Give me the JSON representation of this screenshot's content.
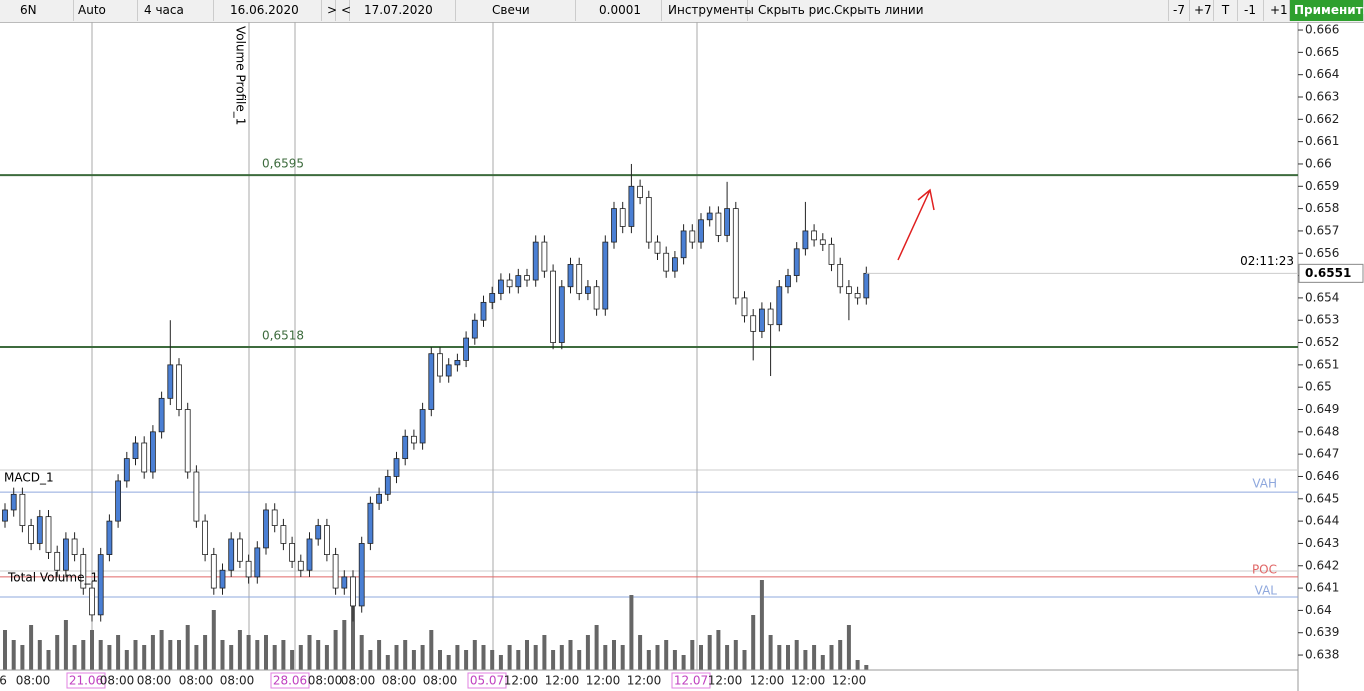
{
  "toolbar": {
    "symbol": "6N",
    "scale": "Auto",
    "timeframe": "4 часа",
    "date_from": "16.06.2020",
    "next": ">",
    "prev": "<",
    "date_to": "17.07.2020",
    "chart_style": "Свечи",
    "tick_size": "0.0001",
    "tools": "Инструменты",
    "hide_drawings": "Скрыть рис.",
    "hide_lines": "Скрыть линии",
    "minus7": "-7",
    "plus7": "+7",
    "t": "T",
    "minus1": "-1",
    "plus1": "+1",
    "apply": "Применить"
  },
  "chart_data": {
    "type": "candlestick",
    "ylim": [
      0.63733,
      0.66636
    ],
    "yticks": [
      0.638,
      0.639,
      0.64,
      0.641,
      0.642,
      0.643,
      0.644,
      0.645,
      0.646,
      0.647,
      0.648,
      0.649,
      0.65,
      0.651,
      0.652,
      0.653,
      0.654,
      0.655,
      0.656,
      0.657,
      0.658,
      0.659,
      0.66,
      0.661,
      0.662,
      0.663,
      0.664,
      0.665,
      0.666
    ],
    "open": [
      0.644,
      0.6445,
      0.6452,
      0.6438,
      0.643,
      0.6442,
      0.6426,
      0.6418,
      0.6432,
      0.6425,
      0.641,
      0.6398,
      0.6425,
      0.644,
      0.6458,
      0.6468,
      0.6475,
      0.6462,
      0.648,
      0.6495,
      0.651,
      0.649,
      0.6462,
      0.644,
      0.6425,
      0.641,
      0.6418,
      0.6432,
      0.6422,
      0.6415,
      0.6428,
      0.6445,
      0.6438,
      0.643,
      0.6422,
      0.6418,
      0.6432,
      0.6438,
      0.6425,
      0.641,
      0.6415,
      0.6402,
      0.643,
      0.6448,
      0.6452,
      0.646,
      0.6468,
      0.6478,
      0.6475,
      0.649,
      0.6515,
      0.6505,
      0.651,
      0.6512,
      0.6522,
      0.653,
      0.6538,
      0.6542,
      0.6548,
      0.6545,
      0.655,
      0.6548,
      0.6565,
      0.6552,
      0.652,
      0.6545,
      0.6555,
      0.6542,
      0.6545,
      0.6535,
      0.6565,
      0.658,
      0.6572,
      0.659,
      0.6585,
      0.6565,
      0.656,
      0.6552,
      0.6558,
      0.657,
      0.6565,
      0.6575,
      0.6578,
      0.6568,
      0.658,
      0.654,
      0.6532,
      0.6525,
      0.6535,
      0.6528,
      0.6545,
      0.655,
      0.6562,
      0.657,
      0.6566,
      0.6564,
      0.6555,
      0.6545,
      0.6542,
      0.654
    ],
    "high": [
      0.6448,
      0.6455,
      0.6455,
      0.6441,
      0.6445,
      0.6445,
      0.6429,
      0.6435,
      0.6435,
      0.6428,
      0.6413,
      0.6428,
      0.6443,
      0.6461,
      0.6471,
      0.6478,
      0.6478,
      0.6483,
      0.6498,
      0.653,
      0.6513,
      0.6493,
      0.6465,
      0.6443,
      0.6428,
      0.6421,
      0.6435,
      0.6435,
      0.6425,
      0.6431,
      0.6448,
      0.6448,
      0.6441,
      0.6433,
      0.6425,
      0.6435,
      0.6441,
      0.6441,
      0.6428,
      0.6418,
      0.6418,
      0.6433,
      0.6451,
      0.6455,
      0.6463,
      0.6471,
      0.6481,
      0.6481,
      0.6493,
      0.6518,
      0.6518,
      0.6513,
      0.6515,
      0.6525,
      0.6533,
      0.6541,
      0.6545,
      0.6551,
      0.6551,
      0.6553,
      0.6553,
      0.6568,
      0.6568,
      0.6555,
      0.6548,
      0.6558,
      0.6558,
      0.6548,
      0.6548,
      0.6568,
      0.6583,
      0.6583,
      0.66,
      0.6593,
      0.6588,
      0.6568,
      0.6563,
      0.6561,
      0.6573,
      0.6573,
      0.6578,
      0.6581,
      0.6581,
      0.6592,
      0.6583,
      0.6543,
      0.6535,
      0.6538,
      0.6538,
      0.6548,
      0.6553,
      0.6565,
      0.6583,
      0.6573,
      0.6569,
      0.6567,
      0.6558,
      0.6548,
      0.6545,
      0.6554
    ],
    "low": [
      0.6437,
      0.6442,
      0.6435,
      0.6427,
      0.6427,
      0.6423,
      0.6415,
      0.6415,
      0.6422,
      0.6407,
      0.6395,
      0.6395,
      0.6422,
      0.6437,
      0.6455,
      0.6465,
      0.6459,
      0.6459,
      0.6477,
      0.6492,
      0.6487,
      0.6459,
      0.6437,
      0.6422,
      0.6407,
      0.6407,
      0.6415,
      0.6419,
      0.6412,
      0.6412,
      0.6425,
      0.6435,
      0.6427,
      0.6419,
      0.6415,
      0.6415,
      0.6429,
      0.6422,
      0.6407,
      0.6407,
      0.6395,
      0.6399,
      0.6427,
      0.6445,
      0.6449,
      0.6457,
      0.6465,
      0.6472,
      0.6472,
      0.6487,
      0.6502,
      0.6502,
      0.6507,
      0.6509,
      0.6519,
      0.6527,
      0.6535,
      0.6539,
      0.6542,
      0.6542,
      0.6545,
      0.6545,
      0.6549,
      0.6517,
      0.6517,
      0.6542,
      0.6539,
      0.6539,
      0.6532,
      0.6532,
      0.6562,
      0.6569,
      0.6569,
      0.6582,
      0.6562,
      0.6557,
      0.6549,
      0.6549,
      0.6555,
      0.6562,
      0.6562,
      0.6572,
      0.6565,
      0.6565,
      0.6537,
      0.6529,
      0.6512,
      0.6522,
      0.6505,
      0.6525,
      0.6542,
      0.6547,
      0.6559,
      0.6563,
      0.6561,
      0.6552,
      0.6542,
      0.653,
      0.6537,
      0.6537
    ],
    "close": [
      0.6445,
      0.6452,
      0.6438,
      0.643,
      0.6442,
      0.6426,
      0.6418,
      0.6432,
      0.6425,
      0.641,
      0.6398,
      0.6425,
      0.644,
      0.6458,
      0.6468,
      0.6475,
      0.6462,
      0.648,
      0.6495,
      0.651,
      0.649,
      0.6462,
      0.644,
      0.6425,
      0.641,
      0.6418,
      0.6432,
      0.6422,
      0.6415,
      0.6428,
      0.6445,
      0.6438,
      0.643,
      0.6422,
      0.6418,
      0.6432,
      0.6438,
      0.6425,
      0.641,
      0.6415,
      0.6402,
      0.643,
      0.6448,
      0.6452,
      0.646,
      0.6468,
      0.6478,
      0.6475,
      0.649,
      0.6515,
      0.6505,
      0.651,
      0.6512,
      0.6522,
      0.653,
      0.6538,
      0.6542,
      0.6548,
      0.6545,
      0.655,
      0.6548,
      0.6565,
      0.6552,
      0.652,
      0.6545,
      0.6555,
      0.6542,
      0.6545,
      0.6535,
      0.6565,
      0.658,
      0.6572,
      0.659,
      0.6585,
      0.6565,
      0.656,
      0.6552,
      0.6558,
      0.657,
      0.6565,
      0.6575,
      0.6578,
      0.6568,
      0.658,
      0.654,
      0.6532,
      0.6525,
      0.6535,
      0.6528,
      0.6545,
      0.655,
      0.6562,
      0.657,
      0.6566,
      0.6564,
      0.6555,
      0.6545,
      0.6542,
      0.654,
      0.6551
    ],
    "volume": [
      40,
      30,
      25,
      45,
      30,
      20,
      35,
      50,
      25,
      30,
      40,
      30,
      25,
      35,
      20,
      30,
      25,
      35,
      40,
      30,
      30,
      45,
      25,
      35,
      60,
      30,
      25,
      40,
      35,
      30,
      35,
      25,
      30,
      20,
      25,
      35,
      30,
      25,
      40,
      50,
      70,
      35,
      20,
      30,
      15,
      25,
      30,
      20,
      25,
      40,
      20,
      15,
      25,
      20,
      30,
      25,
      20,
      15,
      25,
      20,
      30,
      25,
      35,
      20,
      25,
      30,
      20,
      35,
      45,
      25,
      30,
      25,
      75,
      35,
      20,
      25,
      30,
      20,
      15,
      30,
      25,
      35,
      40,
      25,
      30,
      20,
      55,
      90,
      35,
      25,
      25,
      30,
      20,
      25,
      15,
      25,
      30,
      45,
      10,
      5
    ],
    "levels": [
      {
        "value": 0.6595,
        "label": "0,6595"
      },
      {
        "value": 0.6518,
        "label": "0,6518"
      }
    ],
    "profile_levels": [
      {
        "name": "VAH",
        "value": 0.6453,
        "color": "#8fa8dd"
      },
      {
        "name": "POC",
        "value": 0.6415,
        "color": "#e06666"
      },
      {
        "name": "VAL",
        "value": 0.6406,
        "color": "#8fa8dd"
      }
    ],
    "last_price": 0.6551,
    "timer": "02:11:23",
    "indicators": [
      "Volume Profile_1",
      "MACD_1",
      "Total Volume_1"
    ],
    "x_labels": [
      "6",
      "08:00",
      "21.06",
      "08:00",
      "08:00",
      "08:00",
      "08:00",
      "28.06",
      "08:00",
      "08:00",
      "08:00",
      "08:00",
      "05.07",
      "12:00",
      "12:00",
      "12:00",
      "12:00",
      "12.07",
      "12:00",
      "12:00",
      "12:00",
      "12:00"
    ]
  }
}
